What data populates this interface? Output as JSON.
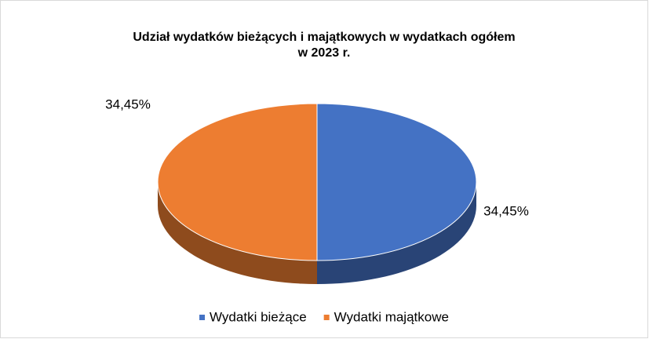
{
  "chart_data": {
    "type": "pie",
    "title": "Udział wydatków bieżących i majątkowych w wydatkach ogółem",
    "subtitle": "w 2023 r.",
    "categories": [
      "Wydatki bieżące",
      "Wydatki majątkowe"
    ],
    "values": [
      34.45,
      34.45
    ],
    "value_labels": [
      "34,45%",
      "34,45%"
    ],
    "colors": [
      "#4472c4",
      "#ed7d31"
    ],
    "legend": "bottom"
  }
}
